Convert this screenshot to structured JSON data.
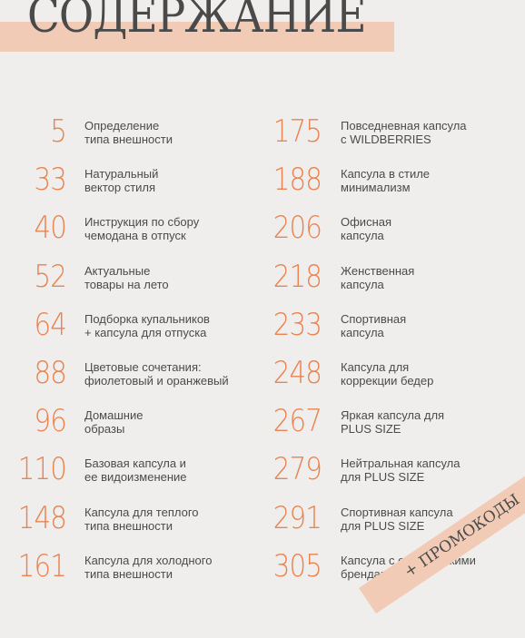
{
  "title": "СОДЕРЖАНИЕ",
  "colors": {
    "background": "#efeeec",
    "accent_band": "#f1cbb5",
    "page_number": "#ea8350",
    "text": "#4b4b4b"
  },
  "left_entries": [
    {
      "page": "5",
      "line1": "Определение",
      "line2": "типа внешности"
    },
    {
      "page": "33",
      "line1": "Натуральный",
      "line2": "вектор стиля"
    },
    {
      "page": "40",
      "line1": "Инструкция по сбору",
      "line2": "чемодана в отпуск"
    },
    {
      "page": "52",
      "line1": "Актуальные",
      "line2": "товары на лето"
    },
    {
      "page": "64",
      "line1": "Подборка купальников",
      "line2": "+ капсула для отпуска"
    },
    {
      "page": "88",
      "line1": "Цветовые сочетания:",
      "line2": "фиолетовый и оранжевый"
    },
    {
      "page": "96",
      "line1": "Домашние",
      "line2": "образы"
    },
    {
      "page": "110",
      "line1": "Базовая капсула и",
      "line2": "ее видоизменение"
    },
    {
      "page": "148",
      "line1": "Капсула для теплого",
      "line2": "типа внешности"
    },
    {
      "page": "161",
      "line1": "Капсула для холодного",
      "line2": "типа внешности"
    }
  ],
  "right_entries": [
    {
      "page": "175",
      "line1": "Повседневная капсула",
      "line2": "с WILDBERRIES"
    },
    {
      "page": "188",
      "line1": "Капсула в стиле",
      "line2": "минимализм"
    },
    {
      "page": "206",
      "line1": "Офисная",
      "line2": "капсула"
    },
    {
      "page": "218",
      "line1": "Женственная",
      "line2": "капсула"
    },
    {
      "page": "233",
      "line1": "Спортивная",
      "line2": "капсула"
    },
    {
      "page": "248",
      "line1": "Капсула для",
      "line2": "коррекции бедер"
    },
    {
      "page": "267",
      "line1": "Яркая капсула для",
      "line2": "PLUS SIZE"
    },
    {
      "page": "279",
      "line1": "Нейтральная капсула",
      "line2": "для PLUS SIZE"
    },
    {
      "page": "291",
      "line1": "Спортивная капсула",
      "line2": "для PLUS SIZE"
    },
    {
      "page": "305",
      "line1": "Капсула с европейскими",
      "line2": "брендами"
    }
  ],
  "ribbon": "+ ПРОМОКОДЫ"
}
